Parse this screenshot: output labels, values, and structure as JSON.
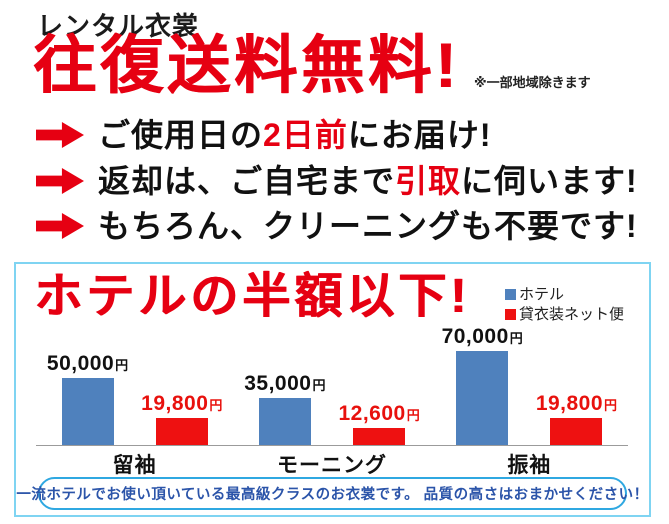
{
  "header": {
    "brand": "レンタル衣裳",
    "headline": "往復送料無料!",
    "note": "※一部地域除きます"
  },
  "bullets": [
    {
      "segments": [
        {
          "text": "ご使用日の"
        },
        {
          "text": "2日前",
          "red": true
        },
        {
          "text": "にお届け!"
        }
      ]
    },
    {
      "segments": [
        {
          "text": "返却は、ご自宅まで"
        },
        {
          "text": "引取",
          "red": true
        },
        {
          "text": "に伺います!"
        }
      ]
    },
    {
      "segments": [
        {
          "text": "もちろん、クリーニングも不要です!"
        }
      ]
    }
  ],
  "chart_data": {
    "type": "bar",
    "title": "ホテルの半額以下!",
    "categories": [
      "留袖",
      "モーニング",
      "振袖"
    ],
    "series": [
      {
        "name": "ホテル",
        "color": "#4f81bd",
        "values": [
          50000,
          35000,
          70000
        ],
        "labels": [
          "50,000",
          "35,000",
          "70,000"
        ]
      },
      {
        "name": "貸衣装ネット便",
        "color": "#ee1111",
        "values": [
          19800,
          12600,
          19800
        ],
        "labels": [
          "19,800",
          "12,600",
          "19,800"
        ]
      }
    ],
    "unit": "円",
    "ylim": [
      0,
      75000
    ],
    "grid": false,
    "legend_position": "top-right",
    "axes": "x-baseline-only"
  },
  "footer": {
    "pill_text": "一流ホテルでお使い頂いている最高級クラスのお衣裳です。 品質の高さはおまかせください！"
  },
  "colors": {
    "accent_red": "#e60012",
    "bar_blue": "#4f81bd",
    "bar_red": "#ee1111",
    "box_border": "#7fd4f2",
    "pill_border": "#2fa8e1",
    "pill_text": "#2b54a9"
  }
}
